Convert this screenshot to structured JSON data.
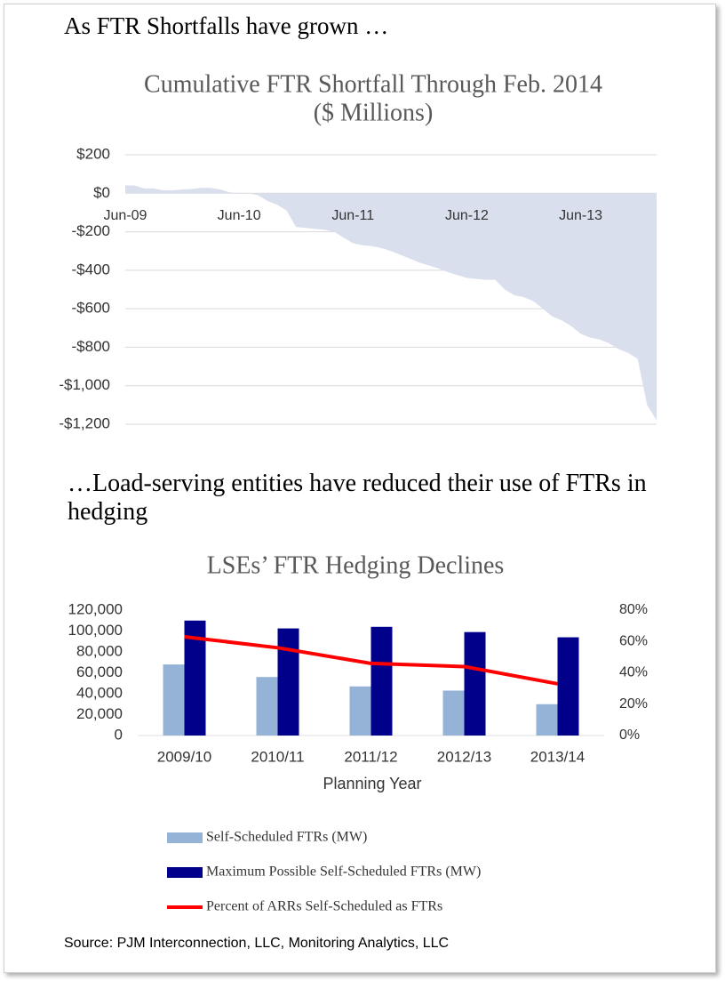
{
  "headings": [
    "As FTR Shortfalls have grown …",
    "…Load-serving entities have reduced their use of FTRs in hedging"
  ],
  "source": "Source: PJM Interconnection, LLC, Monitoring Analytics, LLC",
  "chart_data": [
    {
      "type": "area",
      "title": "Cumulative FTR Shortfall Through Feb. 2014",
      "subtitle": "($ Millions)",
      "color": "#d9dfec",
      "categories": [
        "Jun-09",
        null,
        null,
        null,
        null,
        null,
        null,
        null,
        null,
        null,
        null,
        null,
        "Jun-10",
        null,
        null,
        null,
        null,
        null,
        null,
        null,
        null,
        null,
        null,
        null,
        "Jun-11",
        null,
        null,
        null,
        null,
        null,
        null,
        null,
        null,
        null,
        null,
        null,
        "Jun-12",
        null,
        null,
        null,
        null,
        null,
        null,
        null,
        null,
        null,
        null,
        null,
        "Jun-13",
        null,
        null,
        null,
        null,
        null,
        null,
        null,
        null
      ],
      "values": [
        41,
        40,
        25,
        25,
        15,
        15,
        20,
        22,
        28,
        28,
        20,
        5,
        0,
        0,
        -10,
        -40,
        -60,
        -90,
        -175,
        -180,
        -185,
        -190,
        -200,
        -230,
        -260,
        -270,
        -275,
        -285,
        -300,
        -320,
        -340,
        -360,
        -375,
        -390,
        -410,
        -425,
        -440,
        -445,
        -450,
        -450,
        -500,
        -530,
        -540,
        -560,
        -600,
        -640,
        -660,
        -690,
        -730,
        -750,
        -760,
        -780,
        -810,
        -830,
        -860,
        -1100,
        -1180
      ],
      "ylim": [
        -1200,
        200
      ],
      "yticks": [
        {
          "value": 200,
          "label": "$200"
        },
        {
          "value": 0,
          "label": "$0"
        },
        {
          "value": -200,
          "label": "-$200"
        },
        {
          "value": -400,
          "label": "-$400"
        },
        {
          "value": -600,
          "label": "-$600"
        },
        {
          "value": -800,
          "label": "-$800"
        },
        {
          "value": -1000,
          "label": "-$1,000"
        },
        {
          "value": -1200,
          "label": "-$1,200"
        }
      ],
      "grid": true
    },
    {
      "type": "bar",
      "title": "LSEs’ FTR Hedging Declines",
      "x_label": "Planning Year",
      "categories": [
        "2009/10",
        "2010/11",
        "2011/12",
        "2012/13",
        "2013/14"
      ],
      "series": [
        {
          "name": "Self-Scheduled FTRs (MW)",
          "color": "#95b3d7",
          "values": [
            68000,
            56000,
            47000,
            43000,
            30000
          ]
        },
        {
          "name": "Maximum Possible Self-Scheduled FTRs (MW)",
          "color": "#00008b",
          "values": [
            110000,
            102500,
            104000,
            99000,
            94000
          ]
        },
        {
          "name": "Percent of ARRs Self-Scheduled as FTRs",
          "color": "#ff0000",
          "type": "line",
          "axis": "y2",
          "values": [
            63,
            56,
            46,
            44,
            33
          ]
        }
      ],
      "ylim": [
        0,
        120000
      ],
      "yticks": [
        0,
        {
          "value": 20000,
          "label": "20,000"
        },
        {
          "value": 40000,
          "label": "40,000"
        },
        {
          "value": 60000,
          "label": "60,000"
        },
        {
          "value": 80000,
          "label": "80,000"
        },
        {
          "value": 100000,
          "label": "100,000"
        },
        {
          "value": 120000,
          "label": "120,000"
        }
      ],
      "y2lim": [
        0,
        80
      ],
      "y2ticks": [
        {
          "value": 0,
          "label": "0%"
        },
        {
          "value": 20,
          "label": "20%"
        },
        {
          "value": 40,
          "label": "40%"
        },
        {
          "value": 60,
          "label": "60%"
        },
        {
          "value": 80,
          "label": "80%"
        }
      ],
      "legend": "bottom"
    }
  ]
}
